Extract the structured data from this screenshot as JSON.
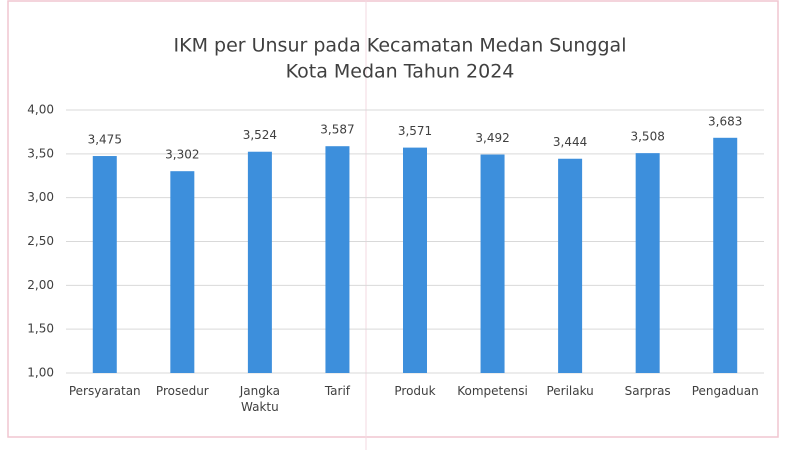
{
  "chart_data": {
    "type": "bar",
    "title": [
      "IKM per Unsur pada Kecamatan Medan Sunggal",
      "Kota Medan Tahun 2024"
    ],
    "categories": [
      "Persyaratan",
      "Prosedur",
      "Jangka Waktu",
      "Tarif",
      "Produk",
      "Kompetensi",
      "Perilaku",
      "Sarpras",
      "Pengaduan"
    ],
    "values": [
      3.475,
      3.302,
      3.524,
      3.587,
      3.571,
      3.492,
      3.444,
      3.508,
      3.683
    ],
    "value_labels": [
      "3,475",
      "3,302",
      "3,524",
      "3,587",
      "3,571",
      "3,492",
      "3,444",
      "3,508",
      "3,683"
    ],
    "color": "#3d8fdc",
    "ylim": [
      1,
      4
    ],
    "yticks": [
      {
        "value": 1,
        "label": "1,00"
      },
      {
        "value": 1.5,
        "label": "1,50"
      },
      {
        "value": 2,
        "label": "2,00"
      },
      {
        "value": 2.5,
        "label": "2,50"
      },
      {
        "value": 3,
        "label": "3,00"
      },
      {
        "value": 3.5,
        "label": "3,50"
      },
      {
        "value": 4,
        "label": "4,00"
      }
    ],
    "grid": true
  }
}
